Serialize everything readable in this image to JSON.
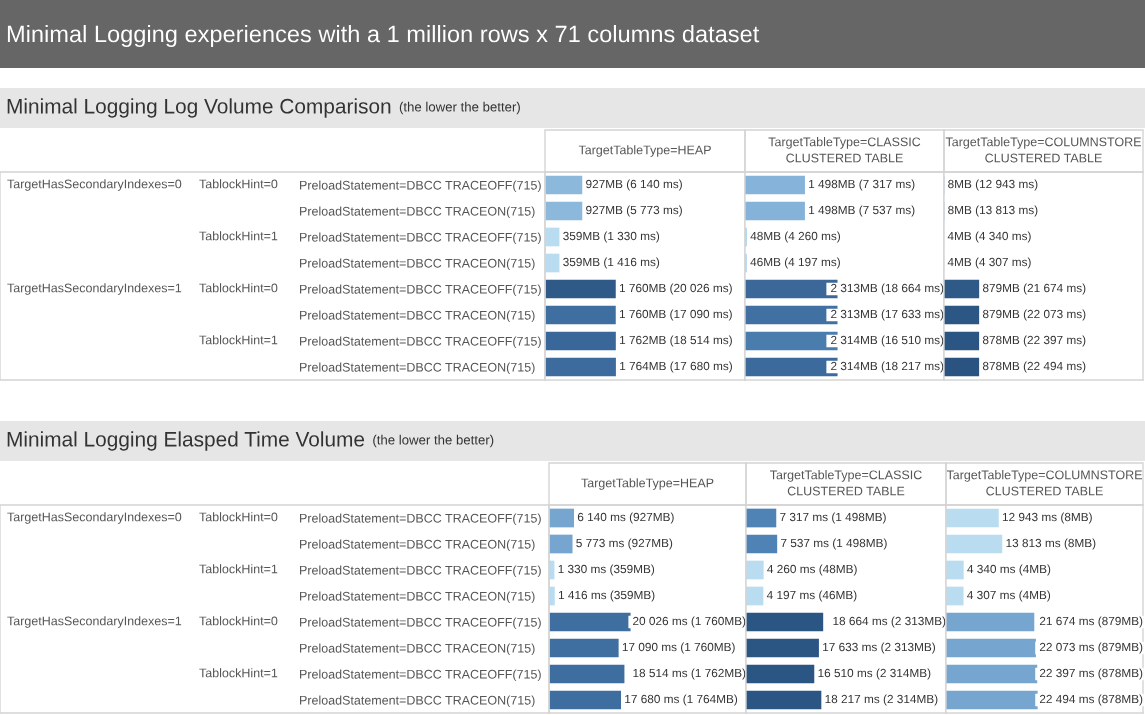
{
  "chart_data": [
    {
      "type": "bar",
      "orientation": "horizontal",
      "title": "Minimal Logging Log Volume Comparison",
      "subtitle": "(the lower the better)",
      "xlabel": "TargetTableType=HEAP",
      "tick_labels": "y",
      "annotations": [
        "Minimal Logging experiences with a 1 million rows x 71 columns dataset",
        "TargetHasSecondaryIndexes=0",
        "TargetHasSecondaryIndexes=1",
        "TablockHint=0",
        "TablockHint=1",
        "TablockHint=0",
        "TablockHint=1"
      ],
      "categories": [
        "PreloadStatement=DBCC TRACEOFF(715)",
        "PreloadStatement=DBCC TRACEON(715)",
        "PreloadStatement=DBCC TRACEOFF(715)",
        "PreloadStatement=DBCC TRACEON(715)",
        "PreloadStatement=DBCC TRACEOFF(715)",
        "PreloadStatement=DBCC TRACEON(715)",
        "PreloadStatement=DBCC TRACEOFF(715)",
        "PreloadStatement=DBCC TRACEON(715)"
      ],
      "values": [
        927,
        927,
        359,
        359,
        1760,
        1760,
        1762,
        1764
      ],
      "value_labels": [
        "927MB (6 140 ms)",
        "927MB (5 773 ms)",
        "359MB (1 330 ms)",
        "359MB (1 416 ms)",
        "1 760MB (20 026 ms)",
        "1 760MB (17 090 ms)",
        "1 762MB (18 514 ms)",
        "1 764MB (17 680 ms)"
      ],
      "colors": [
        "#8cb8dc",
        "#8cb8dc",
        "#b9dcf0",
        "#b9dcf0",
        "#2f5a88",
        "#3f6fa0",
        "#3a679a",
        "#3d6b9e"
      ]
    },
    {
      "type": "bar",
      "orientation": "horizontal",
      "xlabel": "TargetTableType=CLASSIC\nCLUSTERED TABLE",
      "tick_labels": false,
      "values": [
        1498,
        1498,
        48,
        46,
        2313,
        2313,
        2314,
        2314
      ],
      "value_labels": [
        "1 498MB (7 317 ms)",
        "1 498MB (7 537 ms)",
        "48MB (4 260 ms)",
        "46MB (4 197 ms)",
        "2 313MB (18 664 ms)",
        "2 313MB (17 633 ms)",
        "2 314MB (16 510 ms)",
        "2 314MB (18 217 ms)"
      ],
      "colors": [
        "#85b3d9",
        "#85b2d8",
        "#b0d5ec",
        "#b0d5ec",
        "#3b6899",
        "#4170a2",
        "#4a7cae",
        "#3d6a9c"
      ]
    },
    {
      "type": "bar",
      "orientation": "horizontal",
      "xlabel": "TargetTableType=COLUMNSTORE\nCLUSTERED TABLE",
      "tick_labels": false,
      "values": [
        8,
        8,
        4,
        4,
        879,
        879,
        878,
        878
      ],
      "value_labels": [
        "8MB (12 943 ms)",
        "8MB (13 813 ms)",
        "4MB (4 340 ms)",
        "4MB (4 307 ms)",
        "879MB (21 674 ms)",
        "879MB (22 073 ms)",
        "878MB (22 397 ms)",
        "878MB (22 494 ms)"
      ],
      "colors": [
        "#6d9dc9",
        "#6a9ac6",
        "#b0d5ec",
        "#b0d5ec",
        "#2f5a88",
        "#2c5684",
        "#2b5583",
        "#2a5381"
      ]
    },
    {
      "type": "bar",
      "orientation": "horizontal",
      "title": "Minimal Logging Elasped Time Volume",
      "subtitle": "(the lower the better)",
      "xlabel": "TargetTableType=HEAP",
      "tick_labels": "y",
      "annotations": [
        "TargetHasSecondaryIndexes=0",
        "TargetHasSecondaryIndexes=1",
        "TablockHint=0",
        "TablockHint=1",
        "TablockHint=0",
        "TablockHint=1"
      ],
      "categories": [
        "PreloadStatement=DBCC TRACEOFF(715)",
        "PreloadStatement=DBCC TRACEON(715)",
        "PreloadStatement=DBCC TRACEOFF(715)",
        "PreloadStatement=DBCC TRACEON(715)",
        "PreloadStatement=DBCC TRACEOFF(715)",
        "PreloadStatement=DBCC TRACEON(715)",
        "PreloadStatement=DBCC TRACEOFF(715)",
        "PreloadStatement=DBCC TRACEON(715)"
      ],
      "values": [
        6140,
        5773,
        1330,
        1416,
        20026,
        17090,
        18514,
        17680
      ],
      "value_labels": [
        "6 140 ms (927MB)",
        "5 773 ms (927MB)",
        "1 330 ms (359MB)",
        "1 416 ms (359MB)",
        "20 026 ms (1 760MB)",
        "17 090 ms (1 760MB)",
        "18 514 ms (1 762MB)",
        "17 680 ms (1 764MB)"
      ],
      "colors": [
        "#76a6d0",
        "#76a6d0",
        "#b9dcf0",
        "#b9dcf0",
        "#3f6fa0",
        "#3f6fa0",
        "#3e6e9f",
        "#3e6e9f"
      ]
    },
    {
      "type": "bar",
      "orientation": "horizontal",
      "xlabel": "TargetTableType=CLASSIC\nCLUSTERED TABLE",
      "tick_labels": false,
      "values": [
        7317,
        7537,
        4260,
        4197,
        18664,
        17633,
        16510,
        18217
      ],
      "value_labels": [
        "7 317 ms (1 498MB)",
        "7 537 ms (1 498MB)",
        "4 260 ms (48MB)",
        "4 197 ms (46MB)",
        "18 664 ms (2 313MB)",
        "17 633 ms (2 313MB)",
        "16 510 ms (2 314MB)",
        "18 217 ms (2 314MB)"
      ],
      "colors": [
        "#4f82b5",
        "#4f82b5",
        "#b9dcf0",
        "#b9dcf0",
        "#2b5583",
        "#2b5583",
        "#2b5583",
        "#2b5583"
      ]
    },
    {
      "type": "bar",
      "orientation": "horizontal",
      "xlabel": "TargetTableType=COLUMNSTORE\nCLUSTERED TABLE",
      "tick_labels": false,
      "values": [
        12943,
        13813,
        4340,
        4307,
        21674,
        22073,
        22397,
        22494
      ],
      "value_labels": [
        "12 943 ms (8MB)",
        "13 813 ms (8MB)",
        "4 340 ms (4MB)",
        "4 307 ms (4MB)",
        "21 674 ms (879MB)",
        "22 073 ms (879MB)",
        "22 397 ms (878MB)",
        "22 494 ms (878MB)"
      ],
      "colors": [
        "#b9dcf0",
        "#b9dcf0",
        "#b9dcf0",
        "#b9dcf0",
        "#76a6d0",
        "#76a6d0",
        "#76a6d0",
        "#76a6d0"
      ]
    }
  ]
}
